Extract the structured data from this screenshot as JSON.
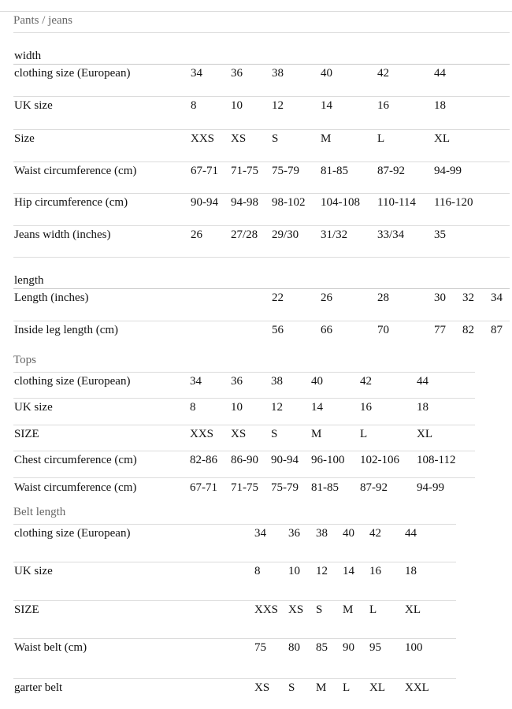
{
  "pants": {
    "title": "Pants / jeans",
    "width_heading": "width",
    "width_rows": [
      {
        "label": "clothing size (European)",
        "cells": [
          "34",
          "36",
          "38",
          "40",
          "42",
          "44"
        ]
      },
      {
        "label": "UK size",
        "cells": [
          "8",
          "10",
          "12",
          "14",
          "16",
          "18"
        ]
      },
      {
        "label": "Size",
        "cells": [
          "XXS",
          "XS",
          "S",
          "M",
          "L",
          "XL"
        ]
      },
      {
        "label": "Waist circumference (cm)",
        "cells": [
          "67-71",
          "71-75",
          "75-79",
          "81-85",
          "87-92",
          "94-99"
        ]
      },
      {
        "label": "Hip circumference (cm)",
        "cells": [
          "90-94",
          "94-98",
          "98-102",
          "104-108",
          "110-114",
          "116-120"
        ]
      },
      {
        "label": "Jeans width (inches)",
        "cells": [
          "26",
          "27/28",
          "29/30",
          "31/32",
          "33/34",
          "35"
        ]
      }
    ],
    "length_heading": "length",
    "length_rows": [
      {
        "label": "Length (inches)",
        "cells": [
          "22",
          "26",
          "28",
          "30",
          "32",
          "34"
        ]
      },
      {
        "label": "Inside leg length (cm)",
        "cells": [
          "56",
          "66",
          "70",
          "77",
          "82",
          "87"
        ]
      }
    ]
  },
  "tops": {
    "title": "Tops",
    "rows": [
      {
        "label": "clothing size (European)",
        "cells": [
          "34",
          "36",
          "38",
          "40",
          "42",
          "44"
        ]
      },
      {
        "label": "UK size",
        "cells": [
          "8",
          "10",
          "12",
          "14",
          "16",
          "18"
        ]
      },
      {
        "label": "SIZE",
        "cells": [
          "XXS",
          "XS",
          "S",
          "M",
          "L",
          "XL"
        ]
      },
      {
        "label": "Chest circumference (cm)",
        "cells": [
          "82-86",
          "86-90",
          "90-94",
          "96-100",
          "102-106",
          "108-112"
        ]
      },
      {
        "label": "Waist circumference (cm)",
        "cells": [
          "67-71",
          "71-75",
          "75-79",
          "81-85",
          "87-92",
          "94-99"
        ]
      }
    ]
  },
  "belt": {
    "title": "Belt length",
    "rows": [
      {
        "label": "clothing size (European)",
        "cells": [
          "34",
          "36",
          "38",
          "40",
          "42",
          "44"
        ]
      },
      {
        "label": "UK size",
        "cells": [
          "8",
          "10",
          "12",
          "14",
          "16",
          "18"
        ]
      },
      {
        "label": "SIZE",
        "cells": [
          "XXS",
          "XS",
          "S",
          "M",
          "L",
          "XL"
        ]
      },
      {
        "label": "Waist belt (cm)",
        "cells": [
          "75",
          "80",
          "85",
          "90",
          "95",
          "100"
        ]
      },
      {
        "label": "garter belt",
        "cells": [
          "XS",
          "S",
          "M",
          "L",
          "XL",
          "XXL"
        ]
      }
    ]
  }
}
